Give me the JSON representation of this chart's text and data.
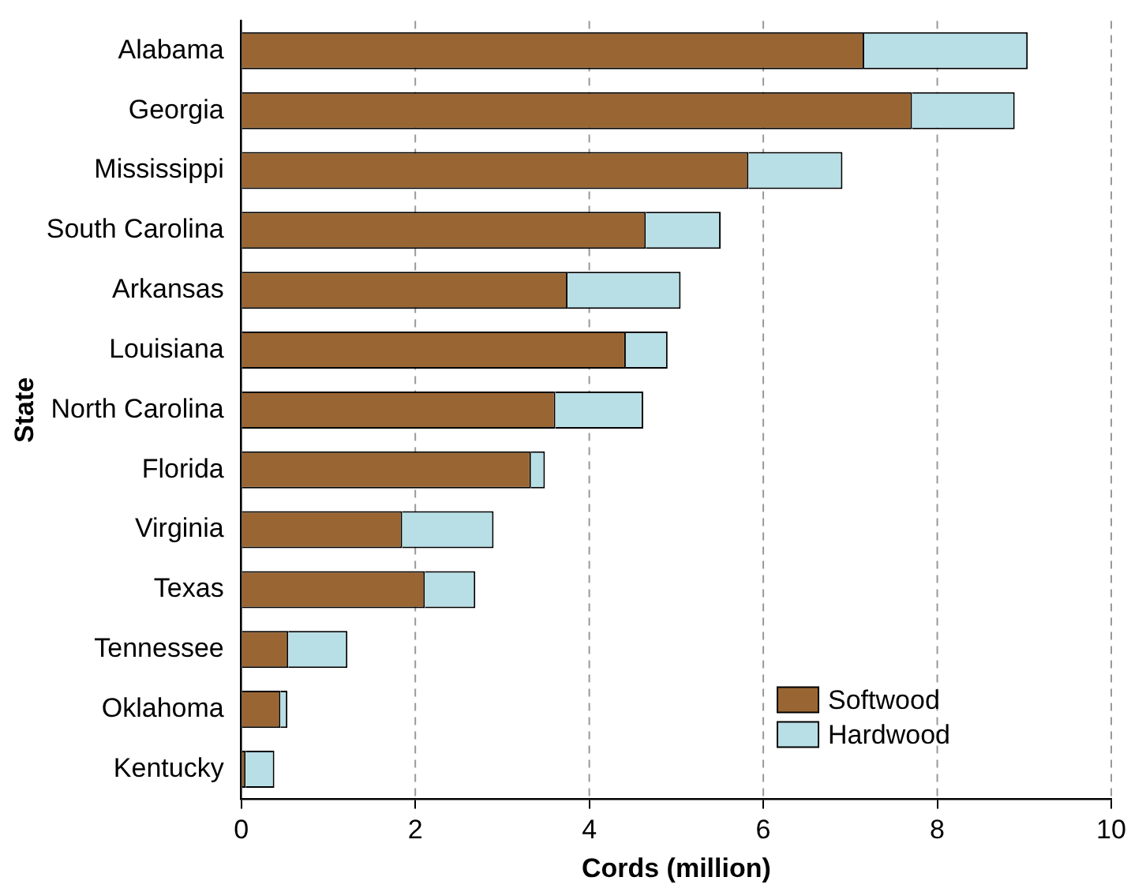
{
  "chart_data": {
    "type": "bar",
    "orientation": "horizontal",
    "stacked": true,
    "xlabel": "Cords (million)",
    "ylabel": "State",
    "categories": [
      "Alabama",
      "Georgia",
      "Mississippi",
      "South Carolina",
      "Arkansas",
      "Louisiana",
      "North Carolina",
      "Florida",
      "Virginia",
      "Texas",
      "Tennessee",
      "Oklahoma",
      "Kentucky"
    ],
    "series": [
      {
        "name": "Softwood",
        "color": "#996633",
        "values": [
          7.16,
          7.71,
          5.83,
          4.65,
          3.75,
          4.42,
          3.61,
          3.33,
          1.85,
          2.11,
          0.54,
          0.45,
          0.05
        ]
      },
      {
        "name": "Hardwood",
        "color": "#b8dfe6",
        "values": [
          1.88,
          1.18,
          1.08,
          0.86,
          1.3,
          0.48,
          1.01,
          0.16,
          1.05,
          0.58,
          0.68,
          0.08,
          0.33
        ]
      }
    ],
    "xlim": [
      0,
      10
    ],
    "xticks": [
      0,
      2,
      4,
      6,
      8,
      10
    ],
    "grid": "x",
    "legend": "bottom right"
  }
}
